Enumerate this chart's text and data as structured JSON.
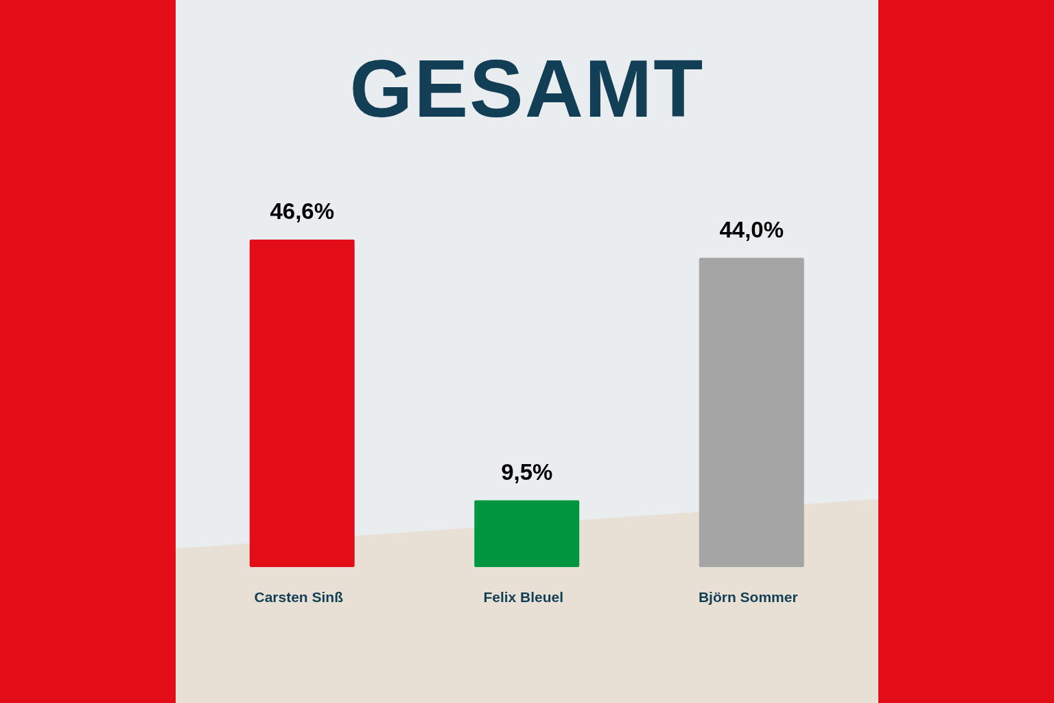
{
  "chart_data": {
    "type": "bar",
    "title": "GESAMT",
    "categories": [
      "Carsten Sinß",
      "Felix Bleuel",
      "Björn Sommer"
    ],
    "values": [
      46.6,
      9.5,
      44.0
    ],
    "colors": [
      "#e30d18",
      "#00963f",
      "#a5a5a5"
    ],
    "value_labels": [
      "46,6%",
      "9,5%",
      "44,0%"
    ]
  }
}
